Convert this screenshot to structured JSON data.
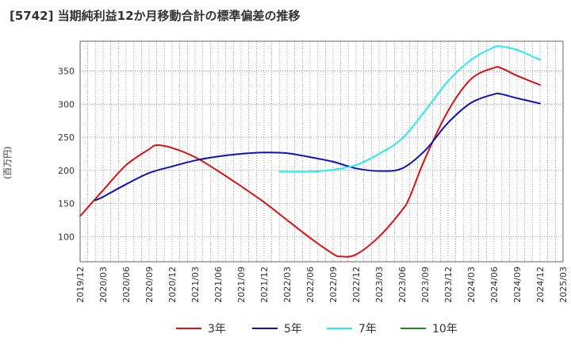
{
  "chart_data": {
    "type": "line",
    "title": "[5742]  当期純利益12か月移動合計の標準偏差の推移",
    "ylabel": "(百万円)",
    "xlabel": "",
    "x_ticks": [
      "2019/12",
      "2020/03",
      "2020/06",
      "2020/09",
      "2020/12",
      "2021/03",
      "2021/06",
      "2021/09",
      "2021/12",
      "2022/03",
      "2022/06",
      "2022/09",
      "2022/12",
      "2023/03",
      "2023/06",
      "2023/09",
      "2023/12",
      "2024/03",
      "2024/06",
      "2024/09",
      "2024/12",
      "2025/03"
    ],
    "y_ticks": [
      100,
      150,
      200,
      250,
      300,
      350
    ],
    "xlim": [
      "2019/12",
      "2025/03"
    ],
    "ylim": [
      62,
      395
    ],
    "grid": true,
    "legend_position": "bottom",
    "series": [
      {
        "name": "3年",
        "color": "#dd1111",
        "points": [
          [
            "2019/12",
            131
          ],
          [
            "2020/03",
            170
          ],
          [
            "2020/06",
            208
          ],
          [
            "2020/09",
            232
          ],
          [
            "2020/10",
            238
          ],
          [
            "2020/12",
            234
          ],
          [
            "2021/03",
            220
          ],
          [
            "2021/06",
            199
          ],
          [
            "2021/09",
            176
          ],
          [
            "2021/12",
            152
          ],
          [
            "2022/03",
            125
          ],
          [
            "2022/06",
            98
          ],
          [
            "2022/09",
            74
          ],
          [
            "2022/10",
            70
          ],
          [
            "2022/12",
            73
          ],
          [
            "2023/03",
            100
          ],
          [
            "2023/06",
            140
          ],
          [
            "2023/07",
            160
          ],
          [
            "2023/09",
            218
          ],
          [
            "2023/12",
            290
          ],
          [
            "2024/03",
            338
          ],
          [
            "2024/06",
            355
          ],
          [
            "2024/07",
            354
          ],
          [
            "2024/09",
            343
          ],
          [
            "2024/12",
            329
          ]
        ]
      },
      {
        "name": "5年",
        "color": "#1111bb",
        "points": [
          [
            "2020/02",
            155
          ],
          [
            "2020/03",
            160
          ],
          [
            "2020/06",
            179
          ],
          [
            "2020/09",
            196
          ],
          [
            "2020/12",
            206
          ],
          [
            "2021/03",
            215
          ],
          [
            "2021/06",
            221
          ],
          [
            "2021/09",
            225
          ],
          [
            "2021/12",
            227
          ],
          [
            "2022/03",
            226
          ],
          [
            "2022/06",
            220
          ],
          [
            "2022/09",
            213
          ],
          [
            "2022/12",
            203
          ],
          [
            "2023/03",
            199
          ],
          [
            "2023/06",
            203
          ],
          [
            "2023/09",
            230
          ],
          [
            "2023/12",
            272
          ],
          [
            "2024/03",
            302
          ],
          [
            "2024/06",
            315
          ],
          [
            "2024/07",
            315
          ],
          [
            "2024/09",
            309
          ],
          [
            "2024/12",
            301
          ]
        ]
      },
      {
        "name": "7年",
        "color": "#22eeee",
        "points": [
          [
            "2022/02",
            198
          ],
          [
            "2022/06",
            198
          ],
          [
            "2022/09",
            201
          ],
          [
            "2022/12",
            208
          ],
          [
            "2023/03",
            225
          ],
          [
            "2023/06",
            248
          ],
          [
            "2023/09",
            290
          ],
          [
            "2023/12",
            335
          ],
          [
            "2024/03",
            367
          ],
          [
            "2024/06",
            386
          ],
          [
            "2024/07",
            387
          ],
          [
            "2024/09",
            382
          ],
          [
            "2024/12",
            367
          ]
        ]
      },
      {
        "name": "10年",
        "color": "#228822",
        "points": []
      }
    ]
  }
}
